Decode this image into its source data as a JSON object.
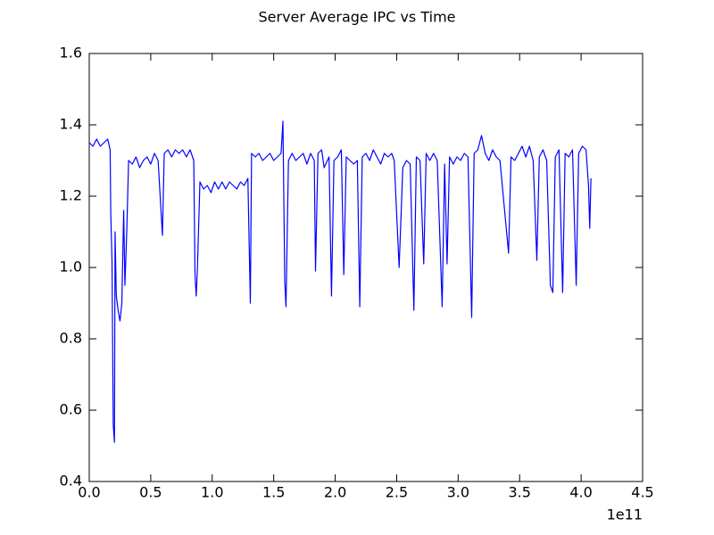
{
  "chart_data": {
    "type": "line",
    "title": "Server Average IPC vs Time",
    "x_offset_label": "1e11",
    "color": "#0000ff",
    "xlim": [
      0,
      4.5
    ],
    "ylim": [
      0.4,
      1.6
    ],
    "xticks": [
      {
        "value": 0,
        "label": "0.0"
      },
      0.5,
      {
        "value": 1,
        "label": "1.0"
      },
      1.5,
      {
        "value": 2,
        "label": "2.0"
      },
      2.5,
      {
        "value": 3,
        "label": "3.0"
      },
      3.5,
      {
        "value": 4,
        "label": "4.0"
      },
      4.5
    ],
    "yticks": [
      0.4,
      0.6,
      0.8,
      {
        "value": 1,
        "label": "1.0"
      },
      1.2,
      1.4,
      1.6
    ],
    "x": [
      0.0,
      0.03,
      0.06,
      0.09,
      0.12,
      0.15,
      0.17,
      0.175,
      0.185,
      0.195,
      0.205,
      0.21,
      0.22,
      0.235,
      0.25,
      0.265,
      0.28,
      0.29,
      0.305,
      0.32,
      0.35,
      0.38,
      0.41,
      0.44,
      0.47,
      0.5,
      0.53,
      0.56,
      0.595,
      0.61,
      0.64,
      0.67,
      0.7,
      0.73,
      0.76,
      0.79,
      0.82,
      0.85,
      0.86,
      0.87,
      0.88,
      0.9,
      0.93,
      0.96,
      0.99,
      1.02,
      1.05,
      1.08,
      1.11,
      1.14,
      1.17,
      1.2,
      1.23,
      1.26,
      1.29,
      1.31,
      1.32,
      1.35,
      1.38,
      1.41,
      1.44,
      1.47,
      1.5,
      1.53,
      1.56,
      1.575,
      1.59,
      1.6,
      1.62,
      1.65,
      1.68,
      1.71,
      1.74,
      1.77,
      1.8,
      1.83,
      1.84,
      1.86,
      1.89,
      1.91,
      1.95,
      1.97,
      1.99,
      2.02,
      2.05,
      2.07,
      2.09,
      2.12,
      2.15,
      2.18,
      2.2,
      2.22,
      2.25,
      2.28,
      2.31,
      2.34,
      2.37,
      2.4,
      2.43,
      2.46,
      2.48,
      2.52,
      2.55,
      2.58,
      2.61,
      2.64,
      2.66,
      2.69,
      2.72,
      2.74,
      2.77,
      2.8,
      2.83,
      2.87,
      2.89,
      2.91,
      2.93,
      2.96,
      2.99,
      3.02,
      3.05,
      3.08,
      3.11,
      3.13,
      3.16,
      3.19,
      3.22,
      3.25,
      3.28,
      3.31,
      3.34,
      3.41,
      3.43,
      3.46,
      3.49,
      3.52,
      3.55,
      3.58,
      3.61,
      3.64,
      3.66,
      3.69,
      3.72,
      3.75,
      3.77,
      3.79,
      3.82,
      3.85,
      3.87,
      3.9,
      3.93,
      3.96,
      3.98,
      4.01,
      4.04,
      4.06,
      4.07,
      4.08
    ],
    "values": [
      1.35,
      1.34,
      1.36,
      1.34,
      1.35,
      1.36,
      1.33,
      1.15,
      1.02,
      0.56,
      0.51,
      1.1,
      0.92,
      0.88,
      0.85,
      0.9,
      1.16,
      0.95,
      1.1,
      1.3,
      1.29,
      1.31,
      1.28,
      1.3,
      1.31,
      1.29,
      1.32,
      1.3,
      1.09,
      1.32,
      1.33,
      1.31,
      1.33,
      1.32,
      1.33,
      1.31,
      1.33,
      1.3,
      0.98,
      0.92,
      1.0,
      1.24,
      1.22,
      1.23,
      1.21,
      1.24,
      1.22,
      1.24,
      1.22,
      1.24,
      1.23,
      1.22,
      1.24,
      1.23,
      1.25,
      0.9,
      1.32,
      1.31,
      1.32,
      1.3,
      1.31,
      1.32,
      1.3,
      1.31,
      1.32,
      1.41,
      0.96,
      0.89,
      1.3,
      1.32,
      1.3,
      1.31,
      1.32,
      1.29,
      1.32,
      1.3,
      0.99,
      1.32,
      1.33,
      1.28,
      1.31,
      0.92,
      1.3,
      1.31,
      1.33,
      0.98,
      1.31,
      1.3,
      1.29,
      1.3,
      0.89,
      1.31,
      1.32,
      1.3,
      1.33,
      1.31,
      1.29,
      1.32,
      1.31,
      1.32,
      1.3,
      1.0,
      1.28,
      1.3,
      1.29,
      0.88,
      1.31,
      1.3,
      1.01,
      1.32,
      1.3,
      1.32,
      1.3,
      0.89,
      1.29,
      1.01,
      1.31,
      1.29,
      1.31,
      1.3,
      1.32,
      1.31,
      0.86,
      1.32,
      1.33,
      1.37,
      1.32,
      1.3,
      1.33,
      1.31,
      1.3,
      1.04,
      1.31,
      1.3,
      1.32,
      1.34,
      1.31,
      1.34,
      1.3,
      1.02,
      1.31,
      1.33,
      1.3,
      0.95,
      0.93,
      1.31,
      1.33,
      0.93,
      1.32,
      1.31,
      1.33,
      0.95,
      1.32,
      1.34,
      1.33,
      1.23,
      1.11,
      1.25
    ]
  }
}
